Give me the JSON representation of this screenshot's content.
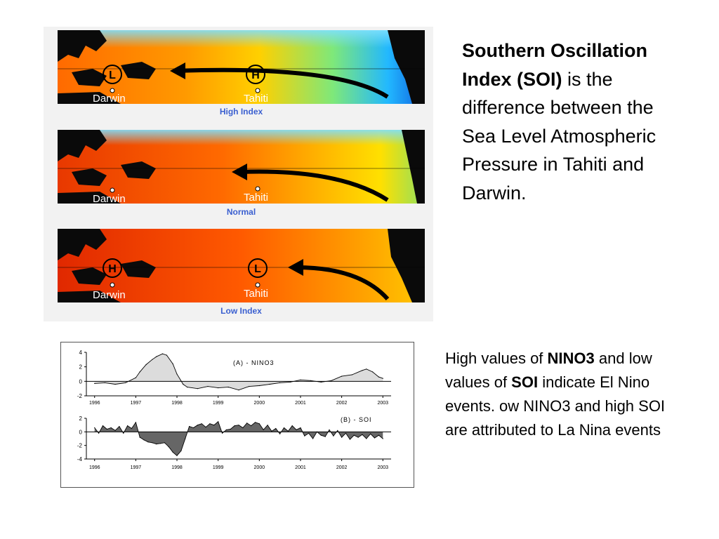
{
  "maps": {
    "panels": [
      {
        "caption": "High Index",
        "west_label": "Darwin",
        "east_label": "Tahiti",
        "west_symbol": "L",
        "east_symbol": "H"
      },
      {
        "caption": "Normal",
        "west_label": "Darwin",
        "east_label": "Tahiti",
        "west_symbol": "",
        "east_symbol": ""
      },
      {
        "caption": "Low Index",
        "west_label": "Darwin",
        "east_label": "Tahiti",
        "west_symbol": "H",
        "east_symbol": "L"
      }
    ]
  },
  "right_text": {
    "bold": "Southern Oscillation Index (SOI)",
    "rest": " is the difference between the Sea Level Atmospheric Pressure in Tahiti and Darwin."
  },
  "bottom_text": {
    "p1": "High values of ",
    "b1": "NINO3",
    "p2": " and low values of ",
    "b2": "SOI",
    "p3": " indicate El Nino events. ow NINO3 and high SOI are attributed to La Nina events"
  },
  "chart_data": [
    {
      "type": "area",
      "title": "(A) - NINO3",
      "ylim": [
        -2,
        4
      ],
      "yticks": [
        "4",
        "2",
        "0",
        "-2"
      ],
      "xticks": [
        "1996",
        "1997",
        "1998",
        "1999",
        "2000",
        "2001",
        "2002",
        "2003"
      ],
      "x": [
        1996.0,
        1996.25,
        1996.5,
        1996.75,
        1997.0,
        1997.1,
        1997.25,
        1997.4,
        1997.5,
        1997.65,
        1997.75,
        1997.9,
        1998.0,
        1998.15,
        1998.25,
        1998.5,
        1998.75,
        1999.0,
        1999.25,
        1999.5,
        1999.75,
        2000.0,
        2000.25,
        2000.5,
        2000.75,
        2001.0,
        2001.25,
        2001.5,
        2001.75,
        2002.0,
        2002.25,
        2002.5,
        2002.6,
        2002.75,
        2002.9,
        2003.0
      ],
      "values": [
        -0.3,
        -0.2,
        -0.4,
        -0.2,
        0.5,
        1.3,
        2.3,
        3.0,
        3.4,
        3.8,
        3.6,
        2.4,
        1.0,
        -0.4,
        -0.8,
        -1.0,
        -0.7,
        -0.9,
        -0.8,
        -1.2,
        -0.7,
        -0.6,
        -0.4,
        -0.2,
        -0.1,
        0.2,
        0.1,
        -0.1,
        0.1,
        0.7,
        0.9,
        1.5,
        1.7,
        1.3,
        0.6,
        0.4
      ],
      "grid": false
    },
    {
      "type": "area",
      "title": "(B) - SOI",
      "ylim": [
        -4,
        2
      ],
      "yticks": [
        "2",
        "0",
        "-2",
        "-4"
      ],
      "xticks": [
        "1996",
        "1997",
        "1998",
        "1999",
        "2000",
        "2001",
        "2002",
        "2003"
      ],
      "x": [
        1996.0,
        1996.1,
        1996.2,
        1996.3,
        1996.4,
        1996.5,
        1996.6,
        1996.7,
        1996.8,
        1996.9,
        1997.0,
        1997.1,
        1997.2,
        1997.3,
        1997.4,
        1997.5,
        1997.6,
        1997.7,
        1997.8,
        1997.9,
        1998.0,
        1998.1,
        1998.2,
        1998.3,
        1998.4,
        1998.5,
        1998.6,
        1998.7,
        1998.8,
        1998.9,
        1999.0,
        1999.1,
        1999.2,
        1999.3,
        1999.4,
        1999.5,
        1999.6,
        1999.7,
        1999.8,
        1999.9,
        2000.0,
        2000.1,
        2000.2,
        2000.3,
        2000.4,
        2000.5,
        2000.6,
        2000.7,
        2000.8,
        2000.9,
        2001.0,
        2001.1,
        2001.2,
        2001.3,
        2001.4,
        2001.5,
        2001.6,
        2001.7,
        2001.8,
        2001.9,
        2002.0,
        2002.1,
        2002.2,
        2002.3,
        2002.4,
        2002.5,
        2002.6,
        2002.7,
        2002.8,
        2002.9,
        2003.0
      ],
      "values": [
        0.6,
        -0.2,
        0.9,
        0.4,
        0.6,
        0.2,
        0.8,
        -0.2,
        0.9,
        0.5,
        1.4,
        -0.8,
        -1.2,
        -1.5,
        -1.6,
        -1.8,
        -1.7,
        -1.6,
        -2.2,
        -3.0,
        -3.5,
        -2.8,
        -1.0,
        0.8,
        0.6,
        1.0,
        1.2,
        0.7,
        1.2,
        1.0,
        1.5,
        -0.2,
        0.3,
        0.4,
        0.9,
        1.0,
        0.6,
        1.3,
        0.9,
        1.4,
        1.2,
        0.3,
        1.0,
        0.1,
        0.5,
        -0.3,
        0.6,
        0.1,
        0.9,
        0.3,
        0.6,
        -0.6,
        -0.2,
        -1.0,
        0.0,
        -0.5,
        -0.7,
        0.3,
        -0.6,
        0.2,
        -0.8,
        -0.2,
        -1.1,
        -0.5,
        -0.8,
        -0.4,
        -1.0,
        -0.3,
        -0.9,
        -0.5,
        -1.0
      ],
      "grid": false
    }
  ],
  "colors": {
    "caption": "#3a5fd0",
    "nino_fill": "#dcdcdc",
    "soi_fill": "#666666"
  }
}
